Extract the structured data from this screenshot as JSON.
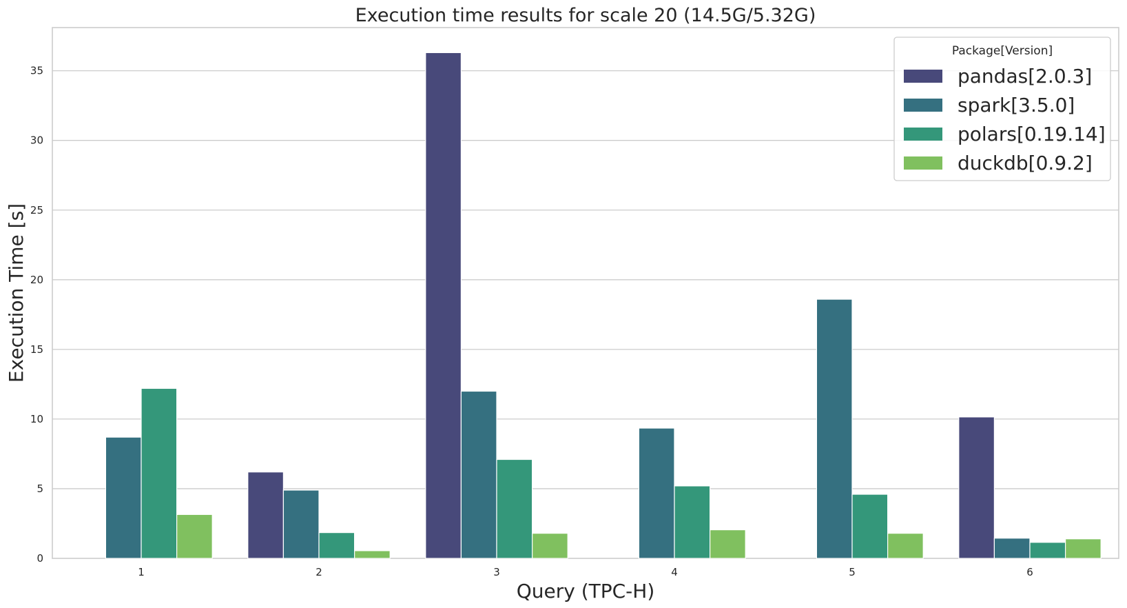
{
  "chart_data": {
    "type": "bar",
    "title": "Execution time results for scale 20 (14.5G/5.32G)",
    "xlabel": "Query (TPC-H)",
    "ylabel": "Execution Time [s]",
    "categories": [
      "1",
      "2",
      "3",
      "4",
      "5",
      "6"
    ],
    "ylim": [
      0,
      38.1
    ],
    "yticks": [
      0,
      5,
      10,
      15,
      20,
      25,
      30,
      35
    ],
    "grid": true,
    "legend": {
      "title": "Package[Version]",
      "placement": "top-right"
    },
    "series": [
      {
        "name": "pandas[2.0.3]",
        "color": "#48497a",
        "values": [
          null,
          6.2,
          36.3,
          null,
          null,
          10.15
        ]
      },
      {
        "name": "spark[3.5.0]",
        "color": "#357080",
        "values": [
          8.7,
          4.9,
          12.0,
          9.35,
          18.6,
          1.45
        ]
      },
      {
        "name": "polars[0.19.14]",
        "color": "#34977a",
        "values": [
          12.2,
          1.85,
          7.1,
          5.2,
          4.6,
          1.15
        ]
      },
      {
        "name": "duckdb[0.9.2]",
        "color": "#80c05f",
        "values": [
          3.15,
          0.55,
          1.8,
          2.05,
          1.8,
          1.4
        ]
      }
    ]
  }
}
